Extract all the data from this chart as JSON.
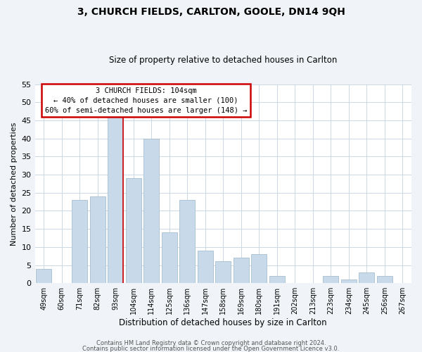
{
  "title": "3, CHURCH FIELDS, CARLTON, GOOLE, DN14 9QH",
  "subtitle": "Size of property relative to detached houses in Carlton",
  "xlabel": "Distribution of detached houses by size in Carlton",
  "ylabel": "Number of detached properties",
  "bar_color": "#c8d9ea",
  "bar_edge_color": "#a8bfd0",
  "categories": [
    "49sqm",
    "60sqm",
    "71sqm",
    "82sqm",
    "93sqm",
    "104sqm",
    "114sqm",
    "125sqm",
    "136sqm",
    "147sqm",
    "158sqm",
    "169sqm",
    "180sqm",
    "191sqm",
    "202sqm",
    "213sqm",
    "223sqm",
    "234sqm",
    "245sqm",
    "256sqm",
    "267sqm"
  ],
  "values": [
    4,
    0,
    23,
    24,
    46,
    29,
    40,
    14,
    23,
    9,
    6,
    7,
    8,
    2,
    0,
    0,
    2,
    1,
    3,
    2,
    0
  ],
  "ylim": [
    0,
    55
  ],
  "yticks": [
    0,
    5,
    10,
    15,
    20,
    25,
    30,
    35,
    40,
    45,
    50,
    55
  ],
  "highlight_index": 4,
  "highlight_line_color": "#cc0000",
  "annotation_box_color": "#ffffff",
  "annotation_border_color": "#cc0000",
  "annotation_title": "3 CHURCH FIELDS: 104sqm",
  "annotation_line1": "← 40% of detached houses are smaller (100)",
  "annotation_line2": "60% of semi-detached houses are larger (148) →",
  "footer1": "Contains HM Land Registry data © Crown copyright and database right 2024.",
  "footer2": "Contains public sector information licensed under the Open Government Licence v3.0.",
  "background_color": "#f0f4f8",
  "plot_bg_color": "#ffffff",
  "grid_color": "#ccd8e4"
}
